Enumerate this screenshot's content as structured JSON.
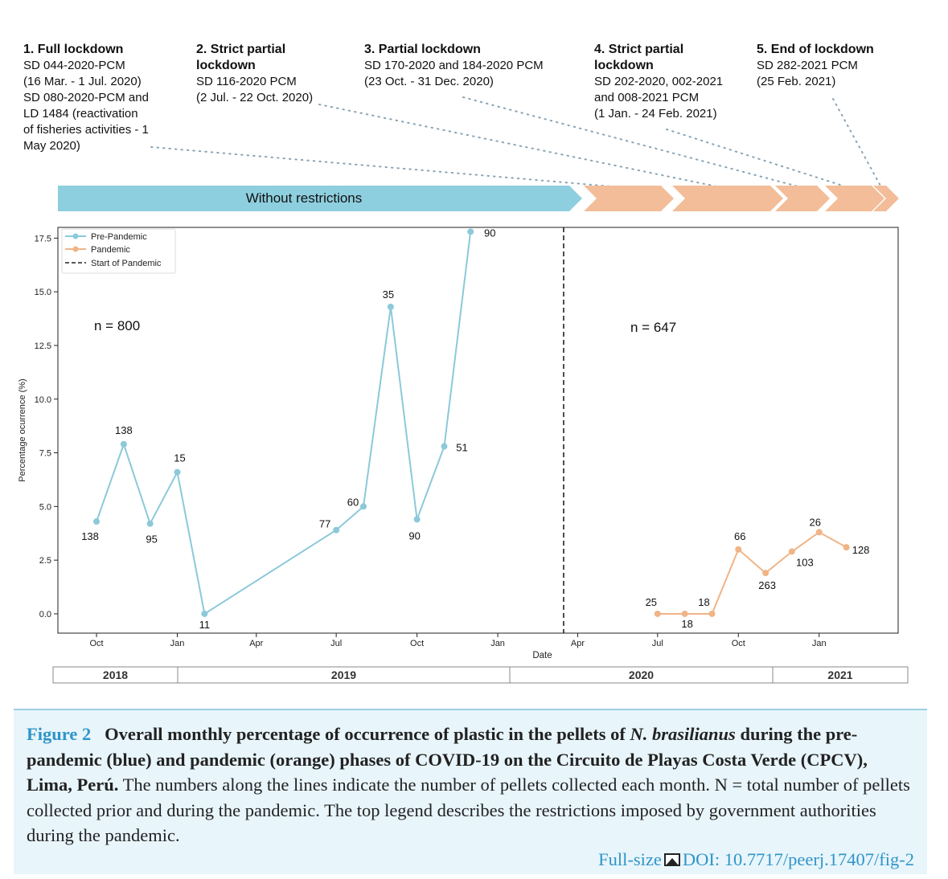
{
  "phases": [
    {
      "title": "1. Full lockdown",
      "lines": [
        "SD 044-2020-PCM",
        "(16 Mar. - 1 Jul. 2020)",
        "SD 080-2020-PCM and",
        "LD 1484 (reactivation",
        "of fisheries activities - 1",
        "May 2020)"
      ]
    },
    {
      "title": "2. Strict partial",
      "title2": "lockdown",
      "lines": [
        "SD 116-2020 PCM",
        "(2 Jul. - 22 Oct. 2020)"
      ]
    },
    {
      "title": "3. Partial lockdown",
      "lines": [
        "SD 170-2020 and 184-2020 PCM",
        "(23 Oct. - 31 Dec. 2020)"
      ]
    },
    {
      "title": "4. Strict partial",
      "title2": "lockdown",
      "lines": [
        "SD 202-2020, 002-2021",
        "and 008-2021 PCM",
        "(1 Jan. - 24 Feb. 2021)"
      ]
    },
    {
      "title": "5. End of lockdown",
      "lines": [
        "SD 282-2021 PCM",
        "(25 Feb. 2021)"
      ]
    }
  ],
  "banner_label": "Without restrictions",
  "chart_data": {
    "type": "line",
    "xlabel": "Date",
    "ylabel": "Percentage ocurrence (%)",
    "ylim": [
      -0.9,
      18.0
    ],
    "yticks": [
      "0.0",
      "2.5",
      "5.0",
      "7.5",
      "10.0",
      "12.5",
      "15.0",
      "17.5"
    ],
    "xlim": [
      "2018-08-18",
      "2021-04-01"
    ],
    "xticks": [
      {
        "date": "2018-10-01",
        "label": "Oct"
      },
      {
        "date": "2019-01-01",
        "label": "Jan"
      },
      {
        "date": "2019-04-01",
        "label": "Apr"
      },
      {
        "date": "2019-07-01",
        "label": "Jul"
      },
      {
        "date": "2019-10-01",
        "label": "Oct"
      },
      {
        "date": "2020-01-01",
        "label": "Jan"
      },
      {
        "date": "2020-04-01",
        "label": "Apr"
      },
      {
        "date": "2020-07-01",
        "label": "Jul"
      },
      {
        "date": "2020-10-01",
        "label": "Oct"
      },
      {
        "date": "2021-01-01",
        "label": "Jan"
      }
    ],
    "legend": {
      "position": "top-left",
      "entries": [
        "Pre-Pandemic",
        "Pandemic",
        "Start of Pandemic"
      ]
    },
    "grid": false,
    "series": [
      {
        "name": "Pre-Pandemic",
        "color": "#8cc9d9",
        "points": [
          {
            "x": "2018-10-01",
            "y": 4.3,
            "label": "138"
          },
          {
            "x": "2018-11-01",
            "y": 7.9,
            "label": "138"
          },
          {
            "x": "2018-12-01",
            "y": 4.2,
            "label": "95"
          },
          {
            "x": "2019-01-01",
            "y": 6.6,
            "label": "15"
          },
          {
            "x": "2019-02-01",
            "y": 0.0,
            "label": "11"
          },
          {
            "x": "2019-07-01",
            "y": 3.9,
            "label": "77"
          },
          {
            "x": "2019-08-01",
            "y": 5.0,
            "label": "60"
          },
          {
            "x": "2019-09-01",
            "y": 14.3,
            "label": "35"
          },
          {
            "x": "2019-10-01",
            "y": 4.4,
            "label": "90"
          },
          {
            "x": "2019-11-01",
            "y": 7.8,
            "label": "51"
          },
          {
            "x": "2019-12-01",
            "y": 17.8,
            "label": "90"
          }
        ]
      },
      {
        "name": "Pandemic",
        "color": "#f0b486",
        "points": [
          {
            "x": "2020-07-01",
            "y": 0.0,
            "label": "25"
          },
          {
            "x": "2020-08-01",
            "y": 0.0,
            "label": "18"
          },
          {
            "x": "2020-09-01",
            "y": 0.0,
            "label": "18"
          },
          {
            "x": "2020-10-01",
            "y": 3.0,
            "label": "66"
          },
          {
            "x": "2020-11-01",
            "y": 1.9,
            "label": "263"
          },
          {
            "x": "2020-12-01",
            "y": 2.9,
            "label": "103"
          },
          {
            "x": "2021-01-01",
            "y": 3.8,
            "label": "26"
          },
          {
            "x": "2021-02-01",
            "y": 3.1,
            "label": "128"
          }
        ]
      }
    ],
    "vline": {
      "x": "2020-03-16",
      "label": "Start of Pandemic"
    },
    "annotations": [
      "n = 800",
      "n = 647"
    ],
    "years": [
      {
        "label": "2018",
        "start": "2018-08-01",
        "end": "2019-01-01"
      },
      {
        "label": "2019",
        "start": "2019-01-01",
        "end": "2020-01-01"
      },
      {
        "label": "2020",
        "start": "2020-01-01",
        "end": "2021-01-01"
      },
      {
        "label": "2021",
        "start": "2021-01-01",
        "end": "2021-06-01"
      }
    ]
  },
  "caption": {
    "label": "Figure 2",
    "bold_before": "Overall monthly percentage of occurrence of plastic in the pellets of ",
    "bold_italic": "N. brasilianus",
    "bold_after": " during the pre-pandemic (blue) and pandemic (orange) phases of COVID-19 on the Circuito de Playas Costa Verde (CPCV), Lima, Perú.",
    "text": " The numbers along the lines indicate the number of pellets collected each month. N = total number of pellets collected prior and during the pandemic. The top legend describes the restrictions imposed by government authorities during the pandemic.",
    "fullsize": "Full-size",
    "doi": "DOI: 10.7717/peerj.17407/fig-2"
  }
}
